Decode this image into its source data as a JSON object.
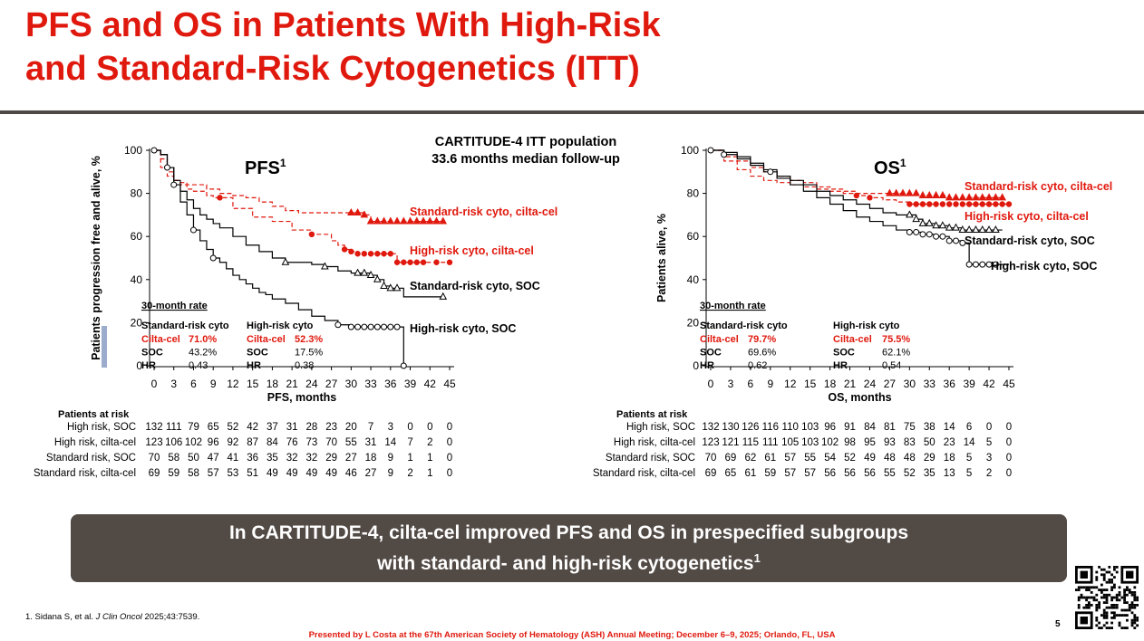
{
  "title_line1": "PFS and OS in Patients With High-Risk",
  "title_line2": "and Standard-Risk Cytogenetics (ITT)",
  "subtitle_line1": "CARTITUDE-4 ITT population",
  "subtitle_line2": "33.6 months median follow-up",
  "colors": {
    "red": "#e0190e",
    "black": "#000000",
    "banner": "#524a45"
  },
  "chart_data": [
    {
      "id": "pfs",
      "type": "line",
      "title": "PFS",
      "title_sup": "1",
      "xlabel": "PFS, months",
      "ylabel": "Patients progression free and alive, %",
      "xlim": [
        0,
        45
      ],
      "ylim": [
        0,
        100
      ],
      "xticks": [
        0,
        3,
        6,
        9,
        12,
        15,
        18,
        21,
        24,
        27,
        30,
        33,
        36,
        39,
        42,
        45
      ],
      "yticks": [
        0,
        20,
        40,
        60,
        80,
        100
      ],
      "rate_heading": "30-month rate",
      "rate_table": {
        "col1_header": "Standard-risk cyto",
        "col2_header": "High-risk cyto",
        "rows": [
          {
            "label": "Cilta-cel",
            "v1": "71.0%",
            "v2": "52.3%",
            "red": true
          },
          {
            "label": "SOC",
            "v1": "43.2%",
            "v2": "17.5%",
            "red": false
          },
          {
            "label": "HR",
            "v1": "0.43",
            "v2": "0.38",
            "red": false
          }
        ]
      },
      "series": [
        {
          "name": "Standard-risk cyto, cilta-cel",
          "color": "#e0190e",
          "dash": true,
          "marker": "triangle",
          "x": [
            0,
            1,
            2,
            3,
            4,
            5,
            6,
            8,
            10,
            12,
            14,
            16,
            18,
            20,
            22,
            24,
            26,
            28,
            30,
            31,
            32,
            33,
            36,
            39,
            42,
            44
          ],
          "y": [
            100,
            92,
            88,
            86,
            85,
            84,
            84,
            82,
            80,
            79,
            78,
            76,
            74,
            72,
            71,
            71,
            71,
            71,
            71,
            71,
            70,
            67,
            67,
            67,
            67,
            67
          ],
          "markers_x": [
            30,
            31,
            32,
            33,
            34,
            35,
            36,
            37,
            38,
            39,
            40,
            41,
            42,
            43,
            44
          ]
        },
        {
          "name": "High-risk cyto, cilta-cel",
          "color": "#e0190e",
          "dash": true,
          "marker": "dot",
          "x": [
            0,
            1,
            2,
            3,
            4,
            5,
            6,
            8,
            9,
            12,
            15,
            18,
            21,
            24,
            27,
            28,
            29,
            30,
            31,
            33,
            36,
            37,
            38,
            45
          ],
          "y": [
            100,
            96,
            90,
            86,
            84,
            82,
            81,
            79,
            78,
            73,
            69,
            67,
            63,
            61,
            58,
            56,
            54,
            53,
            52,
            52,
            52,
            48,
            48,
            48
          ],
          "markers_x": [
            10,
            24,
            29,
            30,
            31,
            32,
            33,
            34,
            35,
            36,
            37,
            38,
            39,
            40,
            41,
            43,
            45
          ]
        },
        {
          "name": "Standard-risk cyto, SOC",
          "color": "#000000",
          "dash": false,
          "marker": "triangle",
          "x": [
            0,
            1,
            2,
            3,
            4,
            5,
            6,
            7,
            8,
            9,
            10,
            12,
            14,
            16,
            18,
            20,
            22,
            24,
            26,
            28,
            30,
            32,
            33,
            34,
            35,
            36,
            37,
            38,
            39,
            44
          ],
          "y": [
            100,
            98,
            92,
            86,
            81,
            77,
            73,
            70,
            68,
            66,
            64,
            60,
            56,
            53,
            50,
            48,
            48,
            47,
            46,
            44,
            43,
            43,
            42,
            40,
            37,
            36,
            36,
            32,
            32,
            32
          ],
          "markers_x": [
            20,
            26,
            31,
            32,
            33,
            34,
            35,
            36,
            37,
            44
          ]
        },
        {
          "name": "High-risk cyto, SOC",
          "color": "#000000",
          "dash": false,
          "marker": "circle",
          "x": [
            0,
            1,
            2,
            3,
            4,
            5,
            6,
            7,
            8,
            9,
            10,
            11,
            12,
            13,
            14,
            15,
            16,
            17,
            18,
            20,
            22,
            24,
            26,
            28,
            30,
            32,
            34,
            36,
            37,
            38
          ],
          "y": [
            100,
            98,
            92,
            84,
            76,
            70,
            63,
            58,
            54,
            50,
            48,
            45,
            42,
            40,
            38,
            36,
            34,
            33,
            31,
            29,
            26,
            23,
            21,
            19,
            18,
            18,
            18,
            18,
            18,
            0
          ],
          "markers_x": [
            0,
            2,
            3,
            6,
            9,
            28,
            30,
            31,
            32,
            33,
            34,
            35,
            36,
            37,
            38
          ]
        }
      ],
      "at_risk": {
        "heading": "Patients at risk",
        "rows": [
          {
            "label": "High risk, SOC",
            "values": [
              "132",
              "111",
              "79",
              "65",
              "52",
              "42",
              "37",
              "31",
              "28",
              "23",
              "20",
              "7",
              "3",
              "0",
              "0",
              "0"
            ]
          },
          {
            "label": "High risk, cilta-cel",
            "values": [
              "123",
              "106",
              "102",
              "96",
              "92",
              "87",
              "84",
              "76",
              "73",
              "70",
              "55",
              "31",
              "14",
              "7",
              "2",
              "0"
            ]
          },
          {
            "label": "Standard risk, SOC",
            "values": [
              "70",
              "58",
              "50",
              "47",
              "41",
              "36",
              "35",
              "32",
              "32",
              "29",
              "27",
              "18",
              "9",
              "1",
              "1",
              "0"
            ]
          },
          {
            "label": "Standard risk, cilta-cel",
            "values": [
              "69",
              "59",
              "58",
              "57",
              "53",
              "51",
              "49",
              "49",
              "49",
              "49",
              "46",
              "27",
              "9",
              "2",
              "1",
              "0"
            ]
          }
        ]
      }
    },
    {
      "id": "os",
      "type": "line",
      "title": "OS",
      "title_sup": "1",
      "xlabel": "OS, months",
      "ylabel": "Patients alive, %",
      "xlim": [
        0,
        45
      ],
      "ylim": [
        0,
        100
      ],
      "xticks": [
        0,
        3,
        6,
        9,
        12,
        15,
        18,
        21,
        24,
        27,
        30,
        33,
        36,
        39,
        42,
        45
      ],
      "yticks": [
        0,
        20,
        40,
        60,
        80,
        100
      ],
      "rate_heading": "30-month rate",
      "rate_table": {
        "col1_header": "Standard-risk cyto",
        "col2_header": "High-risk cyto",
        "rows": [
          {
            "label": "Cilta-cel",
            "v1": "79.7%",
            "v2": "75.5%",
            "red": true
          },
          {
            "label": "SOC",
            "v1": "69.6%",
            "v2": "62.1%",
            "red": false
          },
          {
            "label": "HR",
            "v1": "0.62",
            "v2": "0.54",
            "red": false
          }
        ]
      },
      "series": [
        {
          "name": "Standard-risk cyto, cilta-cel",
          "color": "#e0190e",
          "dash": true,
          "marker": "triangle",
          "x": [
            0,
            2,
            4,
            6,
            8,
            10,
            12,
            14,
            16,
            18,
            20,
            22,
            24,
            26,
            28,
            30,
            32,
            36,
            40,
            44
          ],
          "y": [
            100,
            97,
            95,
            92,
            90,
            88,
            86,
            85,
            83,
            82,
            81,
            80,
            80,
            80,
            80,
            80,
            79,
            78,
            78,
            78
          ],
          "markers_x": [
            27,
            28,
            29,
            30,
            31,
            32,
            33,
            34,
            35,
            36,
            37,
            38,
            39,
            40,
            41,
            42,
            43,
            44
          ]
        },
        {
          "name": "High-risk cyto, cilta-cel",
          "color": "#e0190e",
          "dash": true,
          "marker": "dot",
          "x": [
            0,
            2,
            4,
            6,
            8,
            10,
            12,
            14,
            16,
            18,
            20,
            22,
            24,
            26,
            28,
            30,
            32,
            36,
            40,
            45
          ],
          "y": [
            100,
            95,
            91,
            88,
            86,
            85,
            84,
            83,
            82,
            81,
            80,
            79,
            78,
            77,
            76,
            75,
            75,
            75,
            75,
            75
          ],
          "markers_x": [
            22,
            24,
            30,
            31,
            32,
            33,
            34,
            35,
            36,
            37,
            38,
            39,
            40,
            41,
            42,
            43,
            44,
            45
          ]
        },
        {
          "name": "Standard-risk cyto, SOC",
          "color": "#000000",
          "dash": false,
          "marker": "triangle",
          "x": [
            0,
            2,
            4,
            6,
            8,
            10,
            12,
            14,
            16,
            18,
            20,
            22,
            24,
            26,
            28,
            30,
            31,
            32,
            34,
            36,
            38,
            40,
            42,
            44
          ],
          "y": [
            100,
            99,
            97,
            94,
            91,
            88,
            86,
            84,
            81,
            79,
            77,
            75,
            73,
            71,
            70,
            70,
            68,
            66,
            65,
            64,
            63,
            63,
            63,
            63
          ],
          "markers_x": [
            30,
            31,
            32,
            33,
            34,
            35,
            36,
            37,
            38,
            39,
            40,
            41,
            42,
            43
          ]
        },
        {
          "name": "High-risk cyto, SOC",
          "color": "#000000",
          "dash": false,
          "marker": "circle",
          "x": [
            0,
            2,
            4,
            6,
            8,
            10,
            12,
            14,
            16,
            18,
            20,
            22,
            24,
            26,
            28,
            30,
            32,
            34,
            36,
            38,
            39,
            45
          ],
          "y": [
            100,
            98,
            96,
            93,
            90,
            87,
            84,
            81,
            78,
            75,
            72,
            69,
            67,
            65,
            63,
            62,
            61,
            60,
            58,
            57,
            47,
            47
          ],
          "markers_x": [
            0,
            2,
            9,
            30,
            31,
            32,
            33,
            34,
            35,
            36,
            37,
            38,
            39,
            40,
            41,
            42,
            43
          ]
        }
      ],
      "at_risk": {
        "heading": "Patients at risk",
        "rows": [
          {
            "label": "High risk, SOC",
            "values": [
              "132",
              "130",
              "126",
              "116",
              "110",
              "103",
              "96",
              "91",
              "84",
              "81",
              "75",
              "38",
              "14",
              "6",
              "0",
              "0"
            ]
          },
          {
            "label": "High risk, cilta-cel",
            "values": [
              "123",
              "121",
              "115",
              "111",
              "105",
              "103",
              "102",
              "98",
              "95",
              "93",
              "83",
              "50",
              "23",
              "14",
              "5",
              "0"
            ]
          },
          {
            "label": "Standard risk, SOC",
            "values": [
              "70",
              "69",
              "62",
              "61",
              "57",
              "55",
              "54",
              "52",
              "49",
              "48",
              "48",
              "29",
              "18",
              "5",
              "3",
              "0"
            ]
          },
          {
            "label": "Standard risk, cilta-cel",
            "values": [
              "69",
              "65",
              "61",
              "59",
              "57",
              "57",
              "56",
              "56",
              "56",
              "55",
              "52",
              "35",
              "13",
              "5",
              "2",
              "0"
            ]
          }
        ]
      }
    }
  ],
  "callout_line1": "In CARTITUDE-4, cilta-cel improved PFS and OS in prespecified subgroups",
  "callout_line2": "with standard- and high-risk cytogenetics",
  "callout_sup": "1",
  "footnote_pre": "1. Sidana S, et al. ",
  "footnote_journal": "J Clin Oncol",
  "footnote_post": " 2025;43:7539.",
  "presented": "Presented by L Costa at the 67th American Society of Hematology (ASH) Annual Meeting; December 6–9, 2025; Orlando, FL, USA",
  "page_number": "5",
  "qr_code": "qr-code-icon"
}
